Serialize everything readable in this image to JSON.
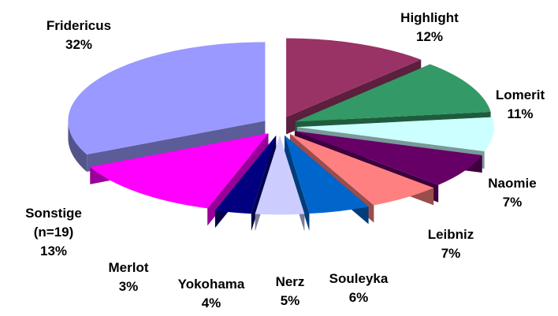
{
  "chart_data": {
    "type": "pie3d",
    "categories": [
      "Fridericus",
      "Highlight",
      "Lomerit",
      "Naomie",
      "Leibniz",
      "Souleyka",
      "Nerz",
      "Yokohama",
      "Merlot",
      "Sonstige (n=19)"
    ],
    "values": [
      32,
      12,
      11,
      7,
      7,
      6,
      5,
      4,
      3,
      13
    ],
    "value_labels": [
      "32%",
      "12%",
      "11%",
      "7%",
      "7%",
      "6%",
      "5%",
      "4%",
      "3%",
      "13%"
    ],
    "colors": [
      "#9999ff",
      "#993366",
      "#339966",
      "#ccffff",
      "#660066",
      "#ff8080",
      "#0066cc",
      "#ccccff",
      "#000080",
      "#ff00ff"
    ]
  }
}
